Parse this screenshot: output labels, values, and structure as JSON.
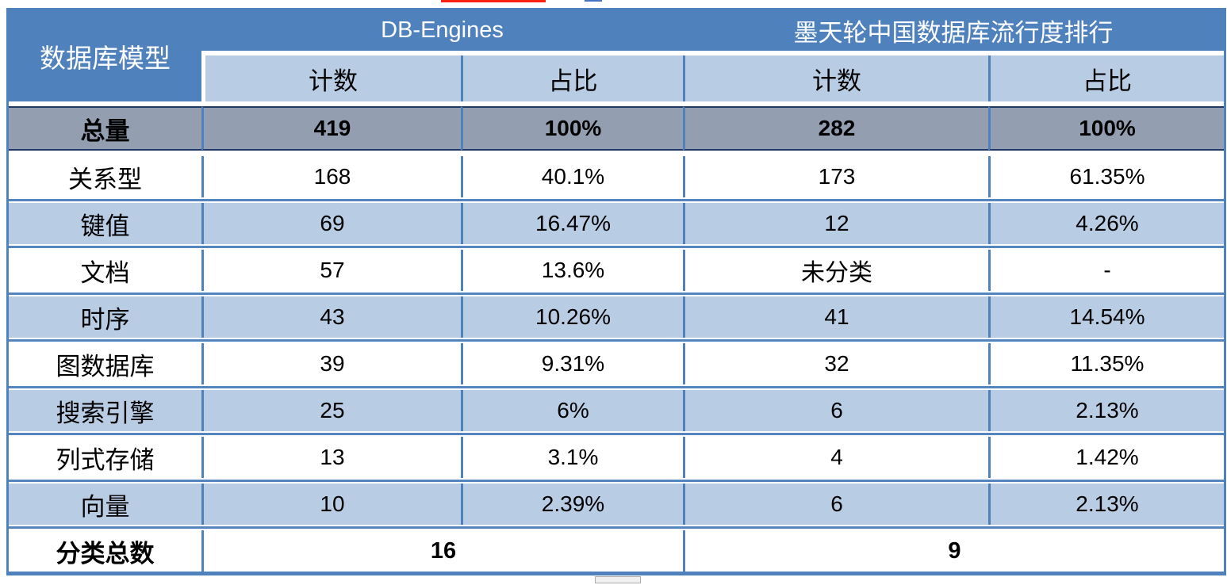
{
  "colors": {
    "header_blue": "#4F81BD",
    "subheader_light_blue": "#B8CCE4",
    "banded_row_light_blue": "#B8CCE4",
    "total_row_gray": "#939EB1",
    "separator_blue": "#5585BE",
    "total_row_border_navy": "#1F3864",
    "header_text": "#FFFFFF",
    "body_text": "#000000",
    "top_artifact_red": "#FF2012"
  },
  "table": {
    "corner_header": "数据库模型",
    "group_headers": [
      {
        "label": "DB-Engines"
      },
      {
        "label": "墨天轮中国数据库流行度排行"
      }
    ],
    "sub_headers": [
      "计数",
      "占比",
      "计数",
      "占比"
    ],
    "rows": [
      {
        "label": "总量",
        "values": [
          "419",
          "100%",
          "282",
          "100%"
        ],
        "variant": "total"
      },
      {
        "label": "关系型",
        "values": [
          "168",
          "40.1%",
          "173",
          "61.35%"
        ],
        "variant": "white"
      },
      {
        "label": "键值",
        "values": [
          "69",
          "16.47%",
          "12",
          "4.26%"
        ],
        "variant": "blue"
      },
      {
        "label": "文档",
        "values": [
          "57",
          "13.6%",
          "未分类",
          "-"
        ],
        "variant": "white"
      },
      {
        "label": "时序",
        "values": [
          "43",
          "10.26%",
          "41",
          "14.54%"
        ],
        "variant": "blue"
      },
      {
        "label": "图数据库",
        "values": [
          "39",
          "9.31%",
          "32",
          "11.35%"
        ],
        "variant": "white"
      },
      {
        "label": "搜索引擎",
        "values": [
          "25",
          "6%",
          "6",
          "2.13%"
        ],
        "variant": "blue"
      },
      {
        "label": "列式存储",
        "values": [
          "13",
          "3.1%",
          "4",
          "1.42%"
        ],
        "variant": "white"
      },
      {
        "label": "向量",
        "values": [
          "10",
          "2.39%",
          "6",
          "2.13%"
        ],
        "variant": "blue"
      }
    ],
    "footer": {
      "label": "分类总数",
      "values": [
        "16",
        "9"
      ]
    }
  },
  "chart_data": {
    "type": "table",
    "row_header": "数据库模型",
    "column_groups": [
      {
        "label": "DB-Engines",
        "columns": [
          "计数",
          "占比"
        ]
      },
      {
        "label": "墨天轮中国数据库流行度排行",
        "columns": [
          "计数",
          "占比"
        ]
      }
    ],
    "rows": [
      {
        "数据库模型": "总量",
        "DB-Engines计数": 419,
        "DB-Engines占比": "100%",
        "墨天轮计数": 282,
        "墨天轮占比": "100%"
      },
      {
        "数据库模型": "关系型",
        "DB-Engines计数": 168,
        "DB-Engines占比": "40.1%",
        "墨天轮计数": 173,
        "墨天轮占比": "61.35%"
      },
      {
        "数据库模型": "键值",
        "DB-Engines计数": 69,
        "DB-Engines占比": "16.47%",
        "墨天轮计数": 12,
        "墨天轮占比": "4.26%"
      },
      {
        "数据库模型": "文档",
        "DB-Engines计数": 57,
        "DB-Engines占比": "13.6%",
        "墨天轮计数": "未分类",
        "墨天轮占比": "-"
      },
      {
        "数据库模型": "时序",
        "DB-Engines计数": 43,
        "DB-Engines占比": "10.26%",
        "墨天轮计数": 41,
        "墨天轮占比": "14.54%"
      },
      {
        "数据库模型": "图数据库",
        "DB-Engines计数": 39,
        "DB-Engines占比": "9.31%",
        "墨天轮计数": 32,
        "墨天轮占比": "11.35%"
      },
      {
        "数据库模型": "搜索引擎",
        "DB-Engines计数": 25,
        "DB-Engines占比": "6%",
        "墨天轮计数": 6,
        "墨天轮占比": "2.13%"
      },
      {
        "数据库模型": "列式存储",
        "DB-Engines计数": 13,
        "DB-Engines占比": "3.1%",
        "墨天轮计数": 4,
        "墨天轮占比": "1.42%"
      },
      {
        "数据库模型": "向量",
        "DB-Engines计数": 10,
        "DB-Engines占比": "2.39%",
        "墨天轮计数": 6,
        "墨天轮占比": "2.13%"
      }
    ],
    "footer": {
      "数据库模型": "分类总数",
      "DB-Engines分类总数": 16,
      "墨天轮分类总数": 9
    }
  }
}
